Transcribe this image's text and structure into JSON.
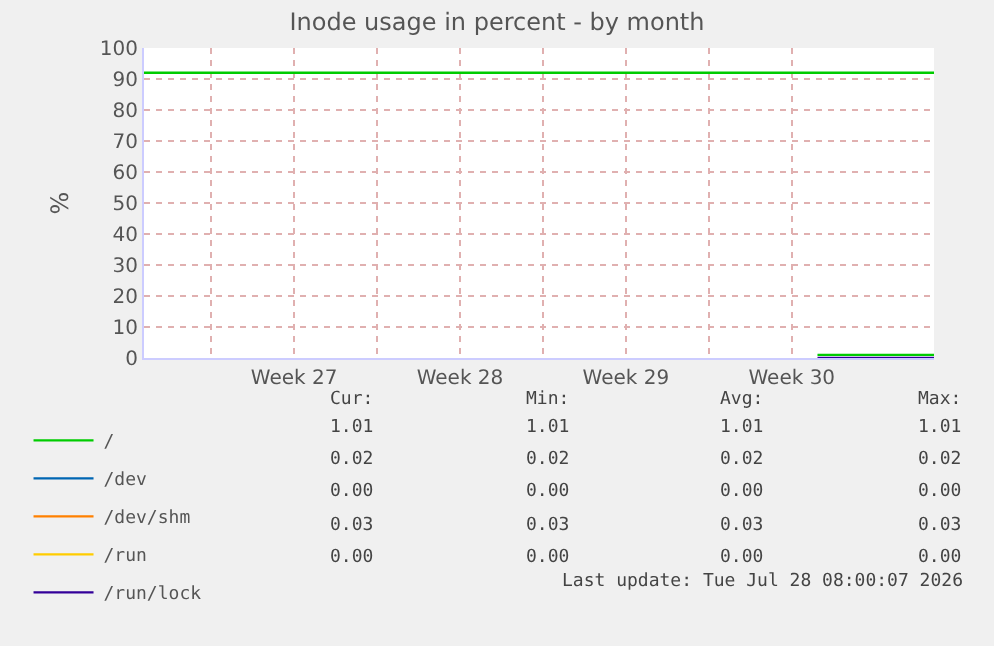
{
  "chart_data": {
    "type": "line",
    "title": "Inode usage in percent - by month",
    "ylabel": "%",
    "xlim": [
      "2026-06-26T04:00",
      "2026-07-29T12:00"
    ],
    "xticks": [
      {
        "value": "2026-06-29",
        "label": null
      },
      {
        "value": "2026-07-02T12:00",
        "label": "Week 27"
      },
      {
        "value": "2026-07-06",
        "label": null
      },
      {
        "value": "2026-07-09T12:00",
        "label": "Week 28"
      },
      {
        "value": "2026-07-13",
        "label": null
      },
      {
        "value": "2026-07-16T12:00",
        "label": "Week 29"
      },
      {
        "value": "2026-07-20",
        "label": null
      },
      {
        "value": "2026-07-23T12:00",
        "label": "Week 30"
      }
    ],
    "ylim": [
      0,
      100
    ],
    "yticks": [
      0,
      10,
      20,
      30,
      40,
      50,
      60,
      70,
      80,
      90,
      100
    ],
    "grid": true,
    "legend": "bottom left",
    "marker": "none",
    "line_style": "solid",
    "x": [
      "2026-07-24T14:00",
      "2026-07-29T12:00"
    ],
    "series": [
      {
        "name": "/",
        "color": "#00cc00",
        "values": [
          1,
          1
        ]
      },
      {
        "name": "/dev",
        "color": "#0066b3",
        "values": [
          null,
          null
        ]
      },
      {
        "name": "/dev/shm",
        "color": "#ff8000",
        "values": [
          null,
          null
        ]
      },
      {
        "name": "/run",
        "color": "#ffcc00",
        "values": [
          null,
          null
        ]
      },
      {
        "name": "/run/lock",
        "color": "#330099",
        "values": [
          0,
          0
        ]
      }
    ],
    "ref_lines": [
      {
        "axis": "y",
        "value": 92,
        "color": "#00cc00",
        "line_style": "solid"
      }
    ],
    "annotations": [
      "Cur:",
      "Min:",
      "Avg:",
      "Max:",
      "1.01",
      "1.01",
      "1.01",
      "1.01",
      "0.02",
      "0.02",
      "0.02",
      "0.02",
      "0.00",
      "0.00",
      "0.00",
      "0.00",
      "0.03",
      "0.03",
      "0.03",
      "0.03",
      "0.00",
      "0.00",
      "0.00",
      "0.00",
      "Last update: Tue Jul 28 08:00:07 2026"
    ]
  }
}
